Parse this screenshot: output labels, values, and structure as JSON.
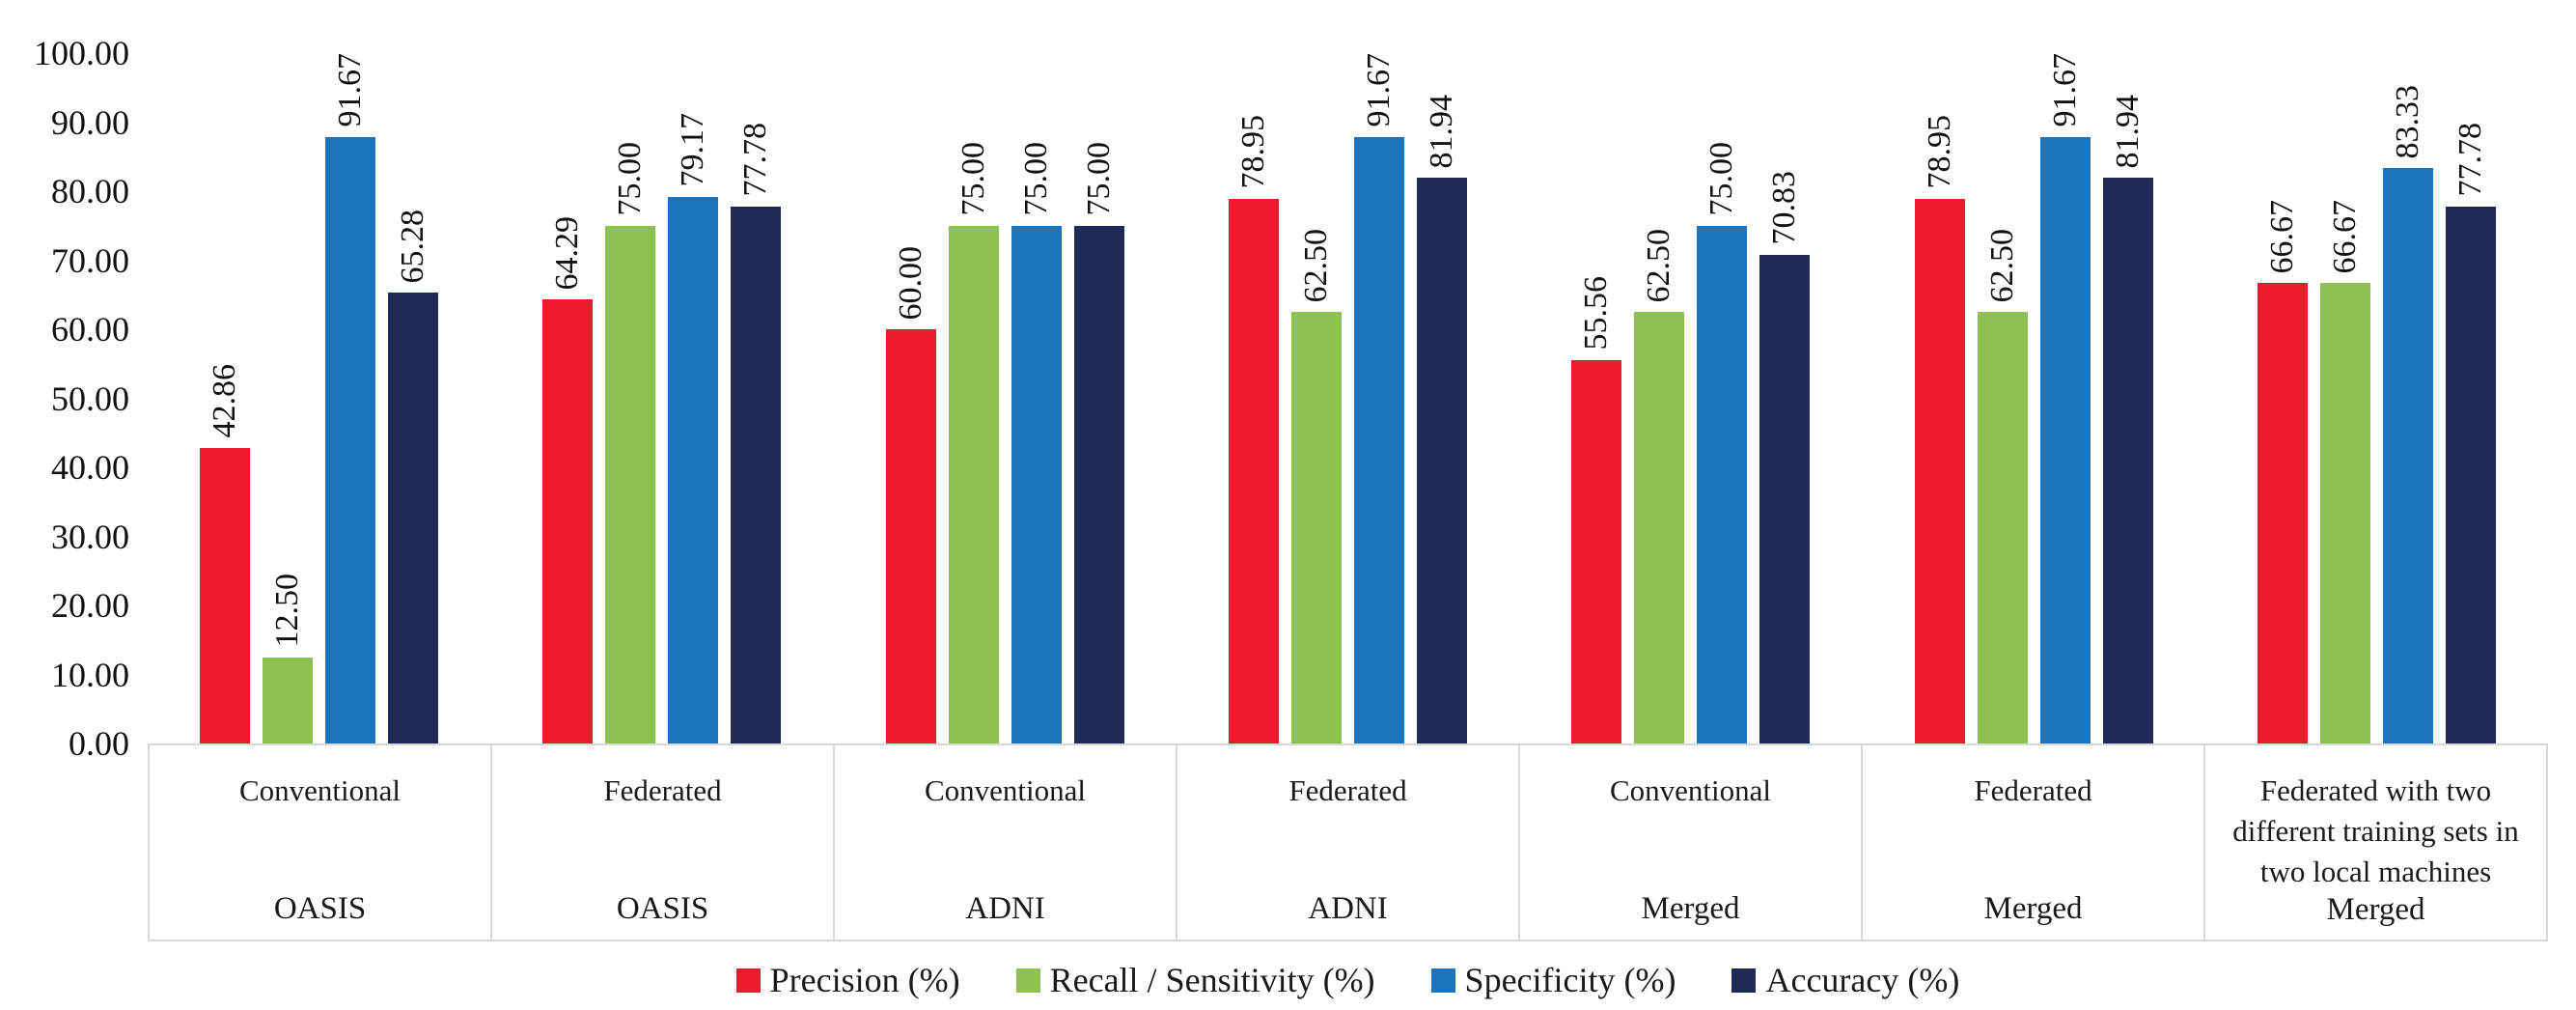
{
  "chart_data": {
    "type": "bar",
    "title": "",
    "xlabel": "",
    "ylabel": "",
    "gridlines": false,
    "legend_position": "bottom",
    "y_axis": {
      "min": 0,
      "max": 100,
      "ticks": [
        0,
        10,
        20,
        30,
        40,
        50,
        60,
        70,
        80,
        90,
        100
      ],
      "tick_format": "two-decimals"
    },
    "series": [
      {
        "key": "precision",
        "name": "Precision (%)",
        "color": "#EC1C2C"
      },
      {
        "key": "recall-sensitivity",
        "name": "Recall / Sensitivity (%)",
        "color": "#8EC153"
      },
      {
        "key": "specificity",
        "name": "Specificity (%)",
        "color": "#1B75BC"
      },
      {
        "key": "accuracy",
        "name": "Accuracy (%)",
        "color": "#1F2A57"
      }
    ],
    "groups": [
      {
        "condition": "Conventional",
        "dataset": "OASIS",
        "values": [
          42.86,
          12.5,
          91.67,
          65.28
        ]
      },
      {
        "condition": "Federated",
        "dataset": "OASIS",
        "values": [
          64.29,
          75.0,
          79.17,
          77.78
        ]
      },
      {
        "condition": "Conventional",
        "dataset": "ADNI",
        "values": [
          60.0,
          75.0,
          75.0,
          75.0
        ]
      },
      {
        "condition": "Federated",
        "dataset": "ADNI",
        "values": [
          78.95,
          62.5,
          91.67,
          81.94
        ]
      },
      {
        "condition": "Conventional",
        "dataset": "Merged",
        "values": [
          55.56,
          62.5,
          75.0,
          70.83
        ]
      },
      {
        "condition": "Federated",
        "dataset": "Merged",
        "values": [
          78.95,
          62.5,
          91.67,
          81.94
        ]
      },
      {
        "condition": "Federated with two different training sets in two local machines",
        "dataset": "Merged",
        "values": [
          66.67,
          66.67,
          83.33,
          77.78
        ]
      }
    ],
    "colors": {
      "axis_line": "#d9d9d9",
      "text": "#111111",
      "background": "#ffffff"
    }
  }
}
